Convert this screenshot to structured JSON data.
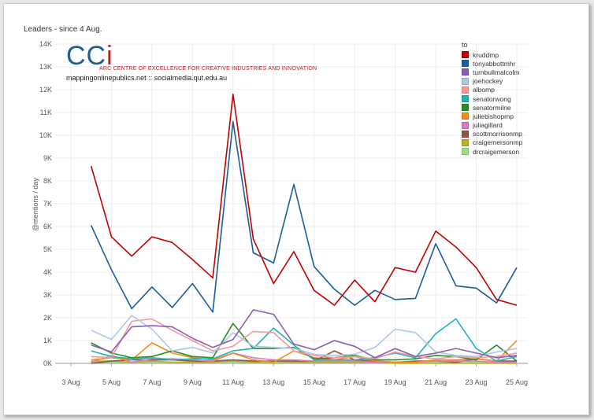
{
  "chart_data": {
    "type": "line",
    "title": "Leaders - since 4 Aug.",
    "ylabel": "@mentions / day",
    "xlabel": "",
    "ylim": [
      0,
      14000
    ],
    "y_ticks": [
      "0K",
      "1K",
      "2K",
      "3K",
      "4K",
      "5K",
      "6K",
      "7K",
      "8K",
      "9K",
      "10K",
      "11K",
      "12K",
      "13K",
      "14K"
    ],
    "x": [
      "3 Aug",
      "4 Aug",
      "5 Aug",
      "6 Aug",
      "7 Aug",
      "8 Aug",
      "9 Aug",
      "10 Aug",
      "11 Aug",
      "12 Aug",
      "13 Aug",
      "14 Aug",
      "15 Aug",
      "16 Aug",
      "17 Aug",
      "18 Aug",
      "19 Aug",
      "20 Aug",
      "21 Aug",
      "22 Aug",
      "23 Aug",
      "24 Aug",
      "25 Aug"
    ],
    "x_tick_labels": [
      "3 Aug",
      "5 Aug",
      "7 Aug",
      "9 Aug",
      "11 Aug",
      "13 Aug",
      "15 Aug",
      "17 Aug",
      "19 Aug",
      "21 Aug",
      "23 Aug",
      "25 Aug"
    ],
    "x_tick_index": [
      0,
      2,
      4,
      6,
      8,
      10,
      12,
      14,
      16,
      18,
      20,
      22
    ],
    "grid": true,
    "legend": {
      "title": "to",
      "placement": "top-right"
    },
    "series": [
      {
        "name": "kruddmp",
        "color": "#c00000",
        "values": [
          null,
          8650,
          5550,
          4700,
          5550,
          5300,
          4550,
          3750,
          11800,
          5450,
          3500,
          4900,
          3200,
          2550,
          3650,
          2700,
          4200,
          4000,
          5800,
          5100,
          4200,
          2800,
          2550
        ]
      },
      {
        "name": "tonyabbottmhr",
        "color": "#1a5d9c",
        "values": [
          null,
          6050,
          4100,
          2400,
          3350,
          2450,
          3500,
          2250,
          10600,
          4850,
          4400,
          7850,
          4250,
          3250,
          2550,
          3200,
          2800,
          2850,
          5250,
          3400,
          3300,
          2650,
          4200
        ]
      },
      {
        "name": "turnbullmalcolm",
        "color": "#8a5db0",
        "values": [
          null,
          800,
          500,
          1600,
          1650,
          1600,
          1100,
          700,
          1050,
          2350,
          2150,
          850,
          600,
          1000,
          750,
          250,
          650,
          300,
          450,
          650,
          450,
          250,
          350
        ]
      },
      {
        "name": "joehockey",
        "color": "#adc7e6",
        "values": [
          null,
          1450,
          1050,
          2100,
          1500,
          550,
          700,
          450,
          1350,
          750,
          700,
          650,
          400,
          350,
          400,
          700,
          1500,
          1350,
          500,
          350,
          300,
          500,
          650
        ]
      },
      {
        "name": "albomp",
        "color": "#f59a9a",
        "values": [
          null,
          300,
          250,
          1850,
          1950,
          1450,
          1000,
          550,
          750,
          1400,
          1350,
          550,
          350,
          250,
          300,
          200,
          500,
          300,
          200,
          300,
          250,
          300,
          450
        ]
      },
      {
        "name": "senatorwong",
        "color": "#20b5b5",
        "values": [
          null,
          550,
          300,
          200,
          250,
          150,
          200,
          200,
          550,
          650,
          1550,
          800,
          150,
          150,
          150,
          250,
          450,
          250,
          1300,
          1950,
          650,
          100,
          300
        ]
      },
      {
        "name": "senatormilne",
        "color": "#2b8c2b",
        "values": [
          null,
          900,
          450,
          250,
          300,
          550,
          300,
          250,
          1750,
          650,
          650,
          700,
          200,
          250,
          350,
          150,
          150,
          200,
          350,
          300,
          150,
          800,
          100
        ]
      },
      {
        "name": "juliebishopmp",
        "color": "#f28c1e",
        "values": [
          null,
          150,
          250,
          150,
          900,
          450,
          250,
          150,
          450,
          150,
          50,
          550,
          250,
          150,
          300,
          100,
          50,
          50,
          150,
          150,
          200,
          100,
          1000
        ]
      },
      {
        "name": "juliagillard",
        "color": "#e07ac0",
        "values": [
          null,
          50,
          350,
          50,
          200,
          200,
          150,
          100,
          450,
          250,
          150,
          150,
          100,
          100,
          100,
          50,
          50,
          50,
          100,
          100,
          100,
          50,
          50
        ]
      },
      {
        "name": "scottmorrisonmp",
        "color": "#8c564b",
        "values": [
          null,
          0,
          100,
          150,
          150,
          150,
          100,
          100,
          150,
          100,
          100,
          100,
          100,
          550,
          150,
          100,
          50,
          100,
          100,
          50,
          200,
          100,
          100
        ]
      },
      {
        "name": "craigemersonmp",
        "color": "#b8b22a",
        "values": [
          null,
          100,
          100,
          50,
          100,
          50,
          50,
          50,
          100,
          50,
          0,
          50,
          50,
          50,
          50,
          50,
          0,
          0,
          0,
          0,
          0,
          0,
          0
        ]
      },
      {
        "name": "drcraigemerson",
        "color": "#9fdc90",
        "values": [
          null,
          50,
          50,
          50,
          50,
          50,
          50,
          50,
          50,
          50,
          50,
          50,
          50,
          50,
          50,
          50,
          50,
          50,
          50,
          50,
          50,
          50,
          50
        ]
      }
    ]
  },
  "logo": {
    "mark": "CC",
    "mark_i": "i",
    "tagline": "ARC CENTRE OF EXCELLENCE FOR CREATIVE INDUSTRIES AND INNOVATION",
    "url": "mappingonlinepublics.net :: socialmedia.qut.edu.au"
  }
}
